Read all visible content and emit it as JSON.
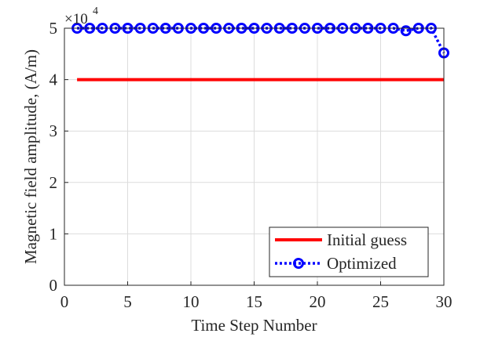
{
  "chart_data": {
    "type": "line",
    "xlabel": "Time Step Number",
    "ylabel": "Magnetic field amplitude, (A/m)",
    "xlim": [
      0,
      30
    ],
    "ylim": [
      0,
      50000
    ],
    "xticks": [
      0,
      5,
      10,
      15,
      20,
      25,
      30
    ],
    "yticks": [
      0,
      1,
      2,
      3,
      4,
      5
    ],
    "y_exponent_base": "×10",
    "y_exponent_power": "4",
    "grid": true,
    "legend_position": "bottom-right",
    "x": [
      1,
      2,
      3,
      4,
      5,
      6,
      7,
      8,
      9,
      10,
      11,
      12,
      13,
      14,
      15,
      16,
      17,
      18,
      19,
      20,
      21,
      22,
      23,
      24,
      25,
      26,
      27,
      28,
      29,
      30
    ],
    "series": [
      {
        "name": "Initial guess",
        "color": "#ff0000",
        "style": "solid",
        "values": [
          40000,
          40000,
          40000,
          40000,
          40000,
          40000,
          40000,
          40000,
          40000,
          40000,
          40000,
          40000,
          40000,
          40000,
          40000,
          40000,
          40000,
          40000,
          40000,
          40000,
          40000,
          40000,
          40000,
          40000,
          40000,
          40000,
          40000,
          40000,
          40000,
          40000
        ]
      },
      {
        "name": "Optimized",
        "color": "#0000ff",
        "style": "dotted",
        "marker": "circle",
        "values": [
          50000,
          50000,
          50000,
          50000,
          50000,
          50000,
          50000,
          50000,
          50000,
          50000,
          50000,
          50000,
          50000,
          50000,
          50000,
          50000,
          50000,
          50000,
          50000,
          50000,
          50000,
          50000,
          50000,
          50000,
          50000,
          50000,
          49500,
          50000,
          50000,
          45200
        ]
      }
    ]
  }
}
